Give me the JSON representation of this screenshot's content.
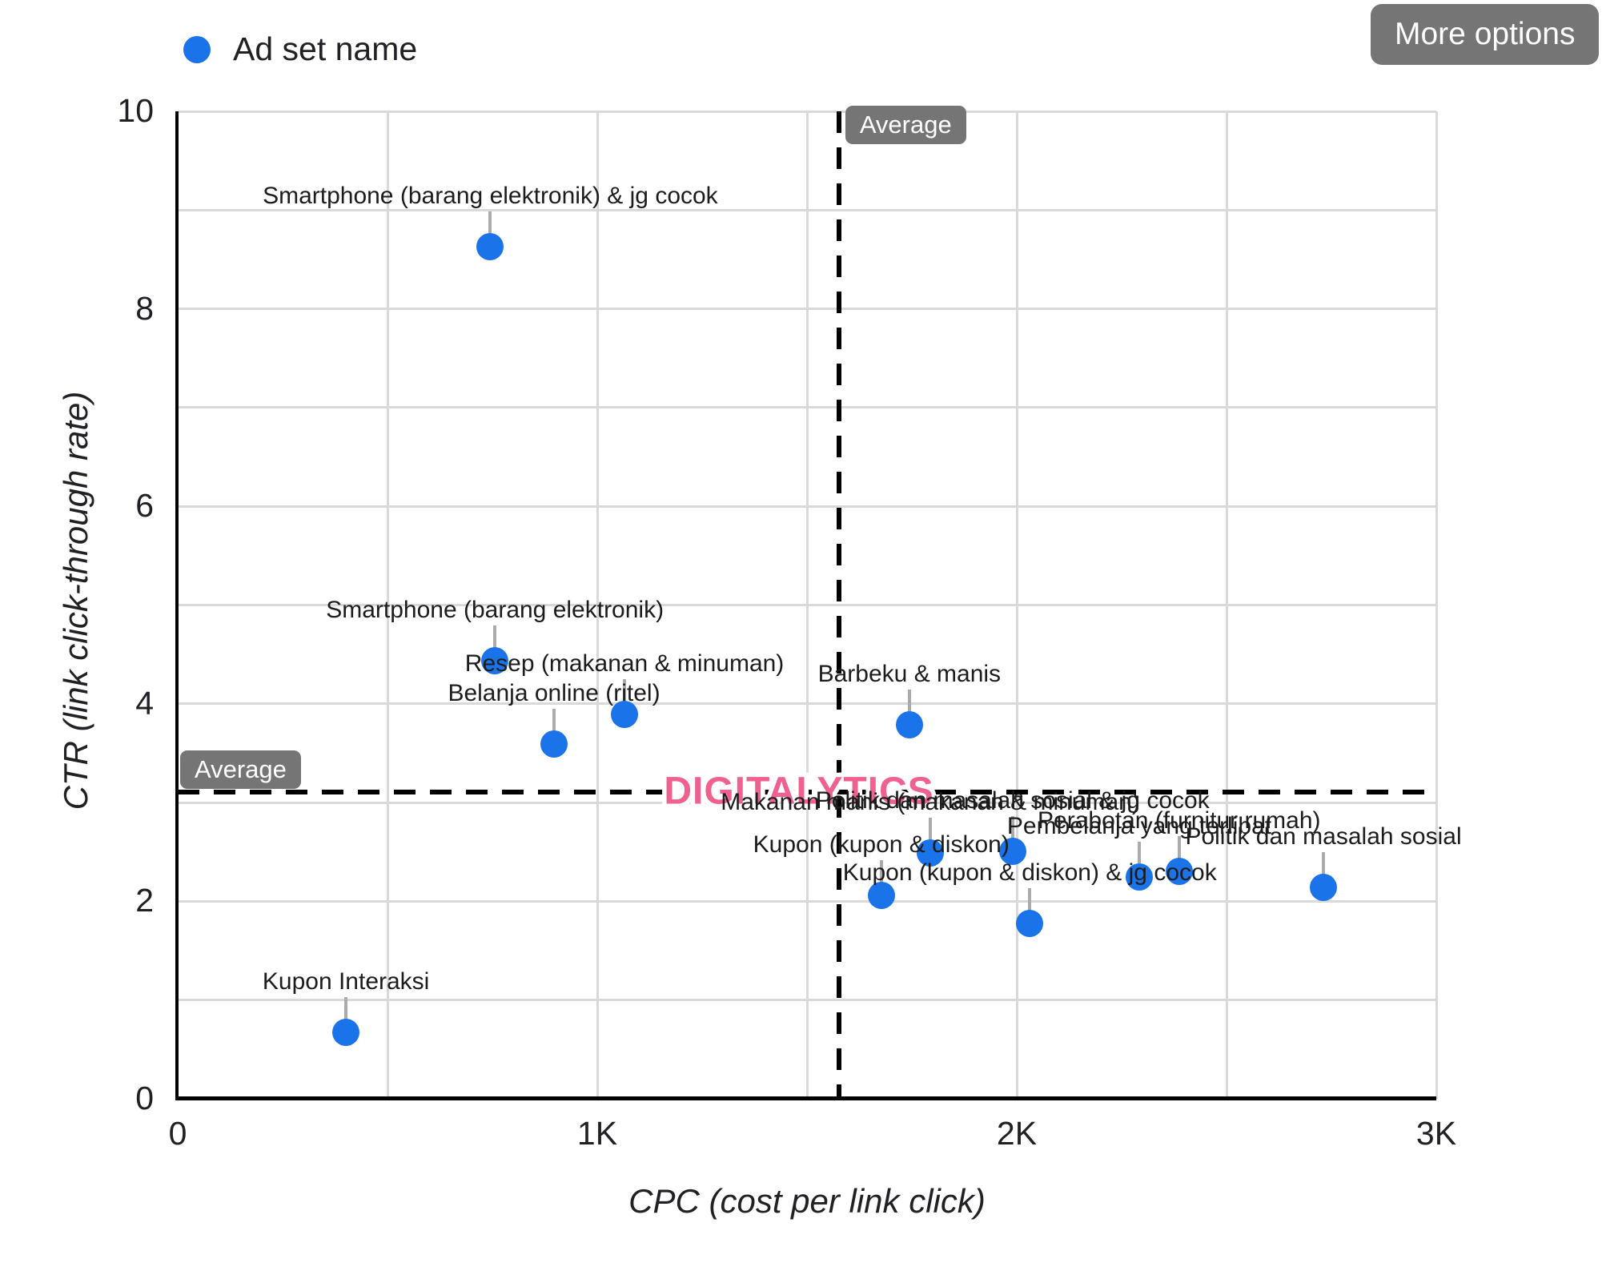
{
  "legend": {
    "label": "Ad set name",
    "dot_color": "#1a73e8"
  },
  "more_options_label": "More options",
  "watermark": "DIGITALYTICS",
  "average_label": "Average",
  "axes": {
    "x_title": "CPC (cost per link click)",
    "y_title": "CTR (link click-through rate)",
    "x_ticks": [
      "0",
      "1K",
      "2K",
      "3K"
    ],
    "y_ticks": [
      "0",
      "2",
      "4",
      "6",
      "8",
      "10"
    ]
  },
  "chart_data": {
    "type": "scatter",
    "title": "",
    "xlabel": "CPC (cost per link click)",
    "ylabel": "CTR (link click-through rate)",
    "xlim": [
      0,
      3000
    ],
    "ylim": [
      0,
      10
    ],
    "x_tick_values": [
      0,
      1000,
      2000,
      3000
    ],
    "y_tick_values": [
      0,
      2,
      4,
      6,
      8,
      10
    ],
    "x_minor_grid_step": 500,
    "y_minor_grid_step": 1,
    "grid": true,
    "legend_position": "top-left",
    "series_name": "Ad set name",
    "point_color": "#1a73e8",
    "average_cpc": 1576,
    "average_ctr": 3.11,
    "points": [
      {
        "label": "Smartphone (barang elektronik) & jg cocok",
        "cpc": 745,
        "ctr": 8.63
      },
      {
        "label": "Smartphone (barang elektronik)",
        "cpc": 756,
        "ctr": 4.44
      },
      {
        "label": "Belanja online (ritel)",
        "cpc": 897,
        "ctr": 3.59
      },
      {
        "label": "Resep (makanan & minuman)",
        "cpc": 1065,
        "ctr": 3.89
      },
      {
        "label": "Barbeku & manis",
        "cpc": 1744,
        "ctr": 3.79
      },
      {
        "label": "Makanan manis (makanan & minuman)",
        "cpc": 1794,
        "ctr": 2.49
      },
      {
        "label": "Politik dan masalah sosial & jg cocok",
        "cpc": 1990,
        "ctr": 2.51
      },
      {
        "label": "Kupon (kupon & diskon)",
        "cpc": 1677,
        "ctr": 2.06
      },
      {
        "label": "Kupon (kupon & diskon) & jg cocok",
        "cpc": 2031,
        "ctr": 1.78
      },
      {
        "label": "Pembelanja yang terlibat",
        "cpc": 2292,
        "ctr": 2.25
      },
      {
        "label": "Perabotan (furnitur rumah)",
        "cpc": 2387,
        "ctr": 2.3
      },
      {
        "label": "Politik dan masalah sosial",
        "cpc": 2731,
        "ctr": 2.14
      },
      {
        "label": "Kupon Interaksi",
        "cpc": 401,
        "ctr": 0.67
      }
    ]
  }
}
